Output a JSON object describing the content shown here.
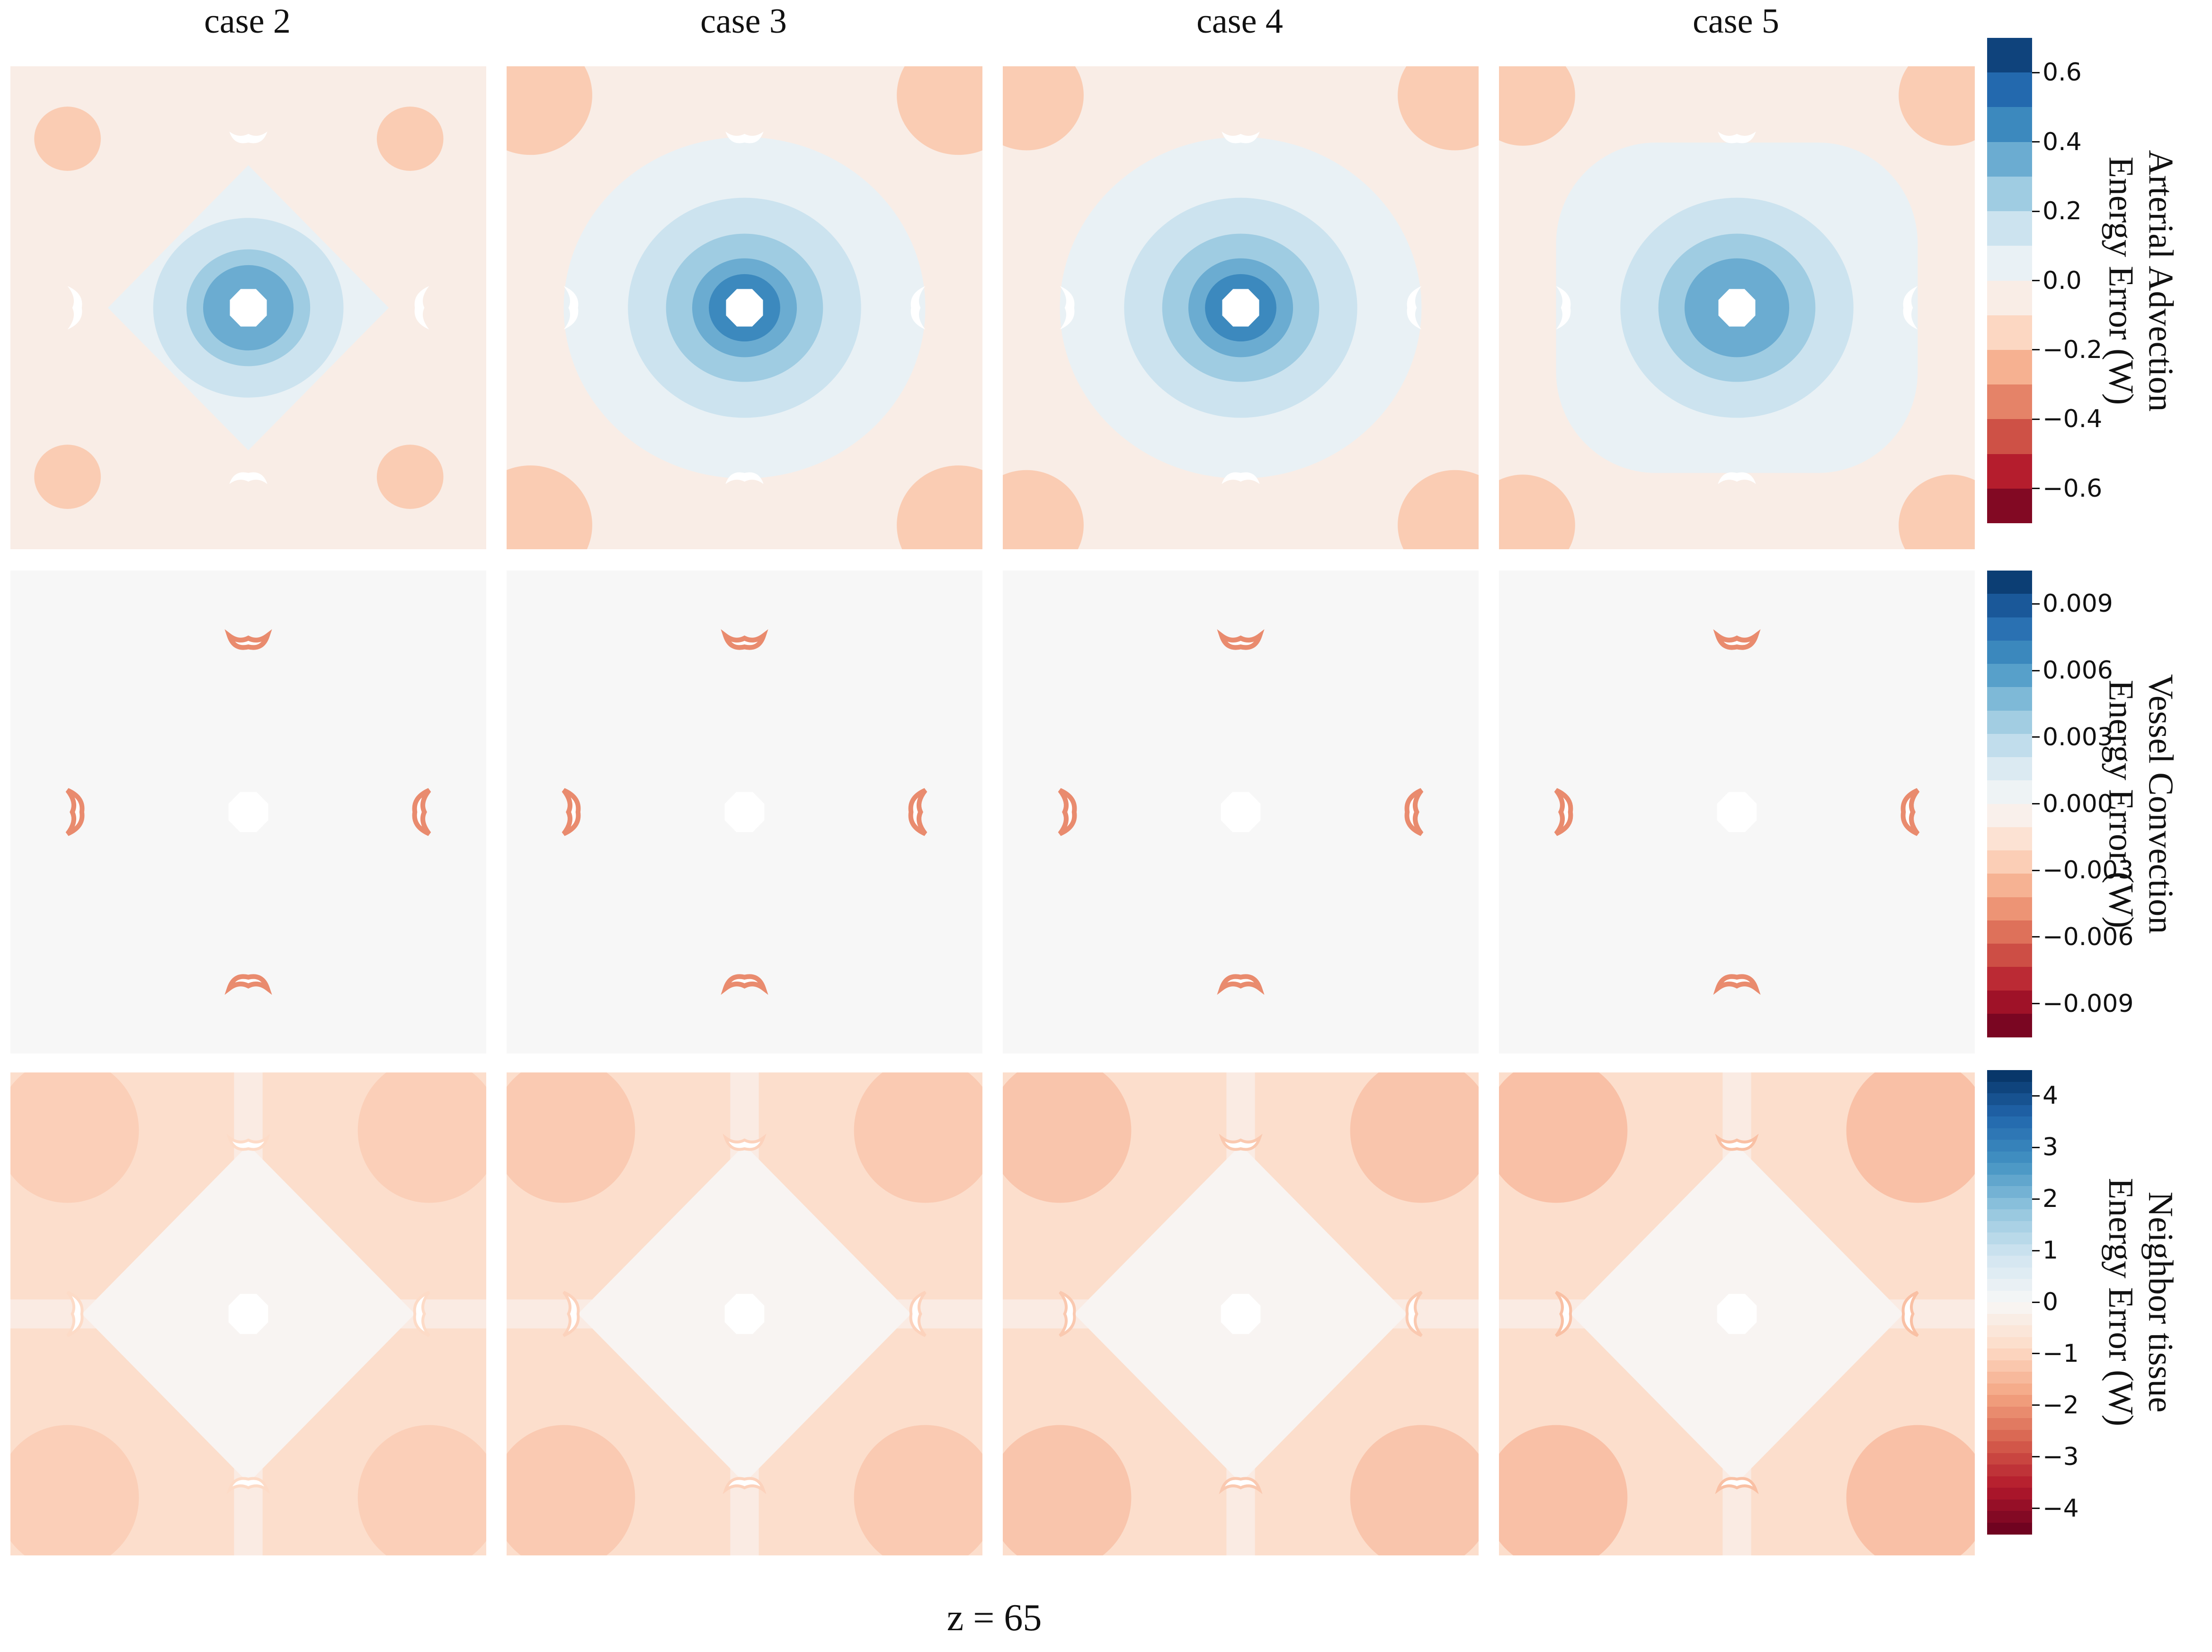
{
  "columns": [
    "case 2",
    "case 3",
    "case 4",
    "case 5"
  ],
  "footer": "z = 65",
  "chart_data": [
    {
      "type": "heatmap",
      "title": "",
      "colorbar_label": [
        "Arterial Advection",
        "Energy Error (W)"
      ],
      "colorbar_ticks": [
        "0.6",
        "0.4",
        "0.2",
        "0.0",
        "−0.2",
        "−0.4",
        "−0.6"
      ],
      "tick_values": [
        0.6,
        0.4,
        0.2,
        0.0,
        -0.2,
        -0.4,
        -0.6
      ],
      "range": [
        -0.7,
        0.7
      ],
      "colormap": "RdBu",
      "panels": [
        "case 2",
        "case 3",
        "case 4",
        "case 5"
      ],
      "center_peak": [
        0.4,
        0.5,
        0.5,
        0.4
      ],
      "background_value": -0.05
    },
    {
      "type": "heatmap",
      "title": "",
      "colorbar_label": [
        "Vessel Convection",
        "Energy Error (W)"
      ],
      "colorbar_ticks": [
        "0.009",
        "0.006",
        "0.003",
        "0.000",
        "−0.003",
        "−0.006",
        "−0.009"
      ],
      "tick_values": [
        0.009,
        0.006,
        0.003,
        0.0,
        -0.003,
        -0.006,
        -0.009
      ],
      "range": [
        -0.0105,
        0.0105
      ],
      "colormap": "RdBu",
      "panels": [
        "case 2",
        "case 3",
        "case 4",
        "case 5"
      ],
      "background_value": 0.0
    },
    {
      "type": "heatmap",
      "title": "",
      "colorbar_label": [
        "Neighbor tissue",
        "Energy Error (W)"
      ],
      "colorbar_ticks": [
        "4",
        "3",
        "2",
        "1",
        "0",
        "−1",
        "−2",
        "−3",
        "−4"
      ],
      "tick_values": [
        4,
        3,
        2,
        1,
        0,
        -1,
        -2,
        -3,
        -4
      ],
      "range": [
        -4.5,
        4.5
      ],
      "colormap": "RdBu",
      "panels": [
        "case 2",
        "case 3",
        "case 4",
        "case 5"
      ],
      "background_value": -0.8
    }
  ]
}
